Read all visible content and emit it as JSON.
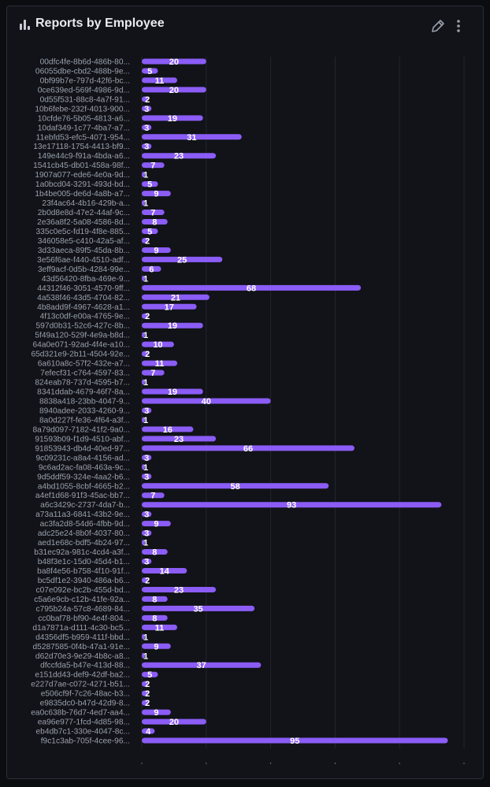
{
  "panel": {
    "title": "Reports by Employee",
    "title_icon": "bar-chart-icon",
    "edit_icon": "pencil-icon",
    "menu_icon": "more-vertical-icon"
  },
  "colors": {
    "bar": "#8b5cf6",
    "background": "#111318",
    "label": "#9aa0ab",
    "value_label": "#ffffff",
    "grid": "#22262e"
  },
  "chart_data": {
    "type": "bar",
    "orientation": "horizontal",
    "title": "Reports by Employee",
    "xlabel": "",
    "ylabel": "",
    "xlim": [
      0,
      100
    ],
    "grid": true,
    "categories": [
      "00dfc4fe-8b6d-486b-80...",
      "06055dbe-cbd2-488b-9e...",
      "0bf99b7e-797d-42f6-bc...",
      "0ce639ed-569f-4986-9d...",
      "0d55f531-88c8-4a7f-91...",
      "10b6febe-232f-4013-900...",
      "10cfde76-5b05-4813-a6...",
      "10daf349-1c77-4ba7-a7...",
      "11ebfd53-efc5-4071-954...",
      "13e17118-1754-4413-bf9...",
      "149e44c9-f91a-4bda-a6...",
      "1541cb45-db01-458a-98f...",
      "1907a077-ede6-4e0a-9d...",
      "1a0bcd04-3291-493d-bd...",
      "1b4be005-de6d-4a8b-a7...",
      "23f4ac64-4b16-429b-a...",
      "2b0d8e8d-47e2-44af-9c...",
      "2e36a8f2-5a08-4586-8d...",
      "335c0e5c-fd19-4f8e-885...",
      "346058e5-c410-42a5-af...",
      "3d33aeca-89f5-45da-8b...",
      "3e56f6ae-f440-4510-adf...",
      "3eff9acf-0d5b-4284-99e...",
      "43d56420-8fba-469e-9...",
      "44312f46-3051-4570-9ff...",
      "4a538f46-43d5-4704-82...",
      "4b8add9f-4967-4628-a1...",
      "4f13c0df-e00a-4765-9e...",
      "597d0b31-52c6-427c-8b...",
      "5f49a120-529f-4e9a-b8d...",
      "64a0e071-92ad-4f4e-a10...",
      "65d321e9-2b11-4504-92e...",
      "6a610a8c-57f2-432e-a7...",
      "7efecf31-c764-4597-83...",
      "824eab78-737d-4595-b7...",
      "8341ddab-4679-46f7-8a...",
      "8838a418-23bb-4047-9...",
      "8940adee-2033-4260-9...",
      "8a0d227f-fe36-4f64-a3f...",
      "8a79d097-7182-41f2-9a0...",
      "91593b09-f1d9-4510-abf...",
      "91853943-db4d-40ed-97...",
      "9c09231c-a8a4-4156-ad...",
      "9c6ad2ac-fa08-463a-9c...",
      "9d5ddf59-324e-4aa2-b6...",
      "a4bd1055-8cbf-4665-b2...",
      "a4ef1d68-91f3-45ac-bb7...",
      "a6c3429c-2737-4da7-b...",
      "a73a11a3-6841-43b2-9e...",
      "ac3fa2d8-54d6-4fbb-9d...",
      "adc25e24-8b0f-4037-80...",
      "aed1e68c-bdf5-4b24-97...",
      "b31ec92a-981c-4cd4-a3f...",
      "b48f3e1c-15d0-45d4-b1...",
      "ba8f4e56-b758-4f10-91f...",
      "bc5df1e2-3940-486a-b6...",
      "c07e092e-bc2b-455d-bd...",
      "c5a6e9cb-c12b-41fe-92a...",
      "c795b24a-57c8-4689-84...",
      "cc0baf78-bf90-4e4f-804...",
      "d1a7871a-d111-4c30-bc5...",
      "d4356df5-b959-411f-bbd...",
      "d5287585-0f4b-47a1-91e...",
      "d62d70e3-9e29-4b8c-a8...",
      "dfccfda5-b47e-413d-88...",
      "e151dd43-def9-42df-ba2...",
      "e227d7ae-c072-4271-b51...",
      "e506cf9f-7c26-48ac-b3...",
      "e9835dc0-b47d-42d9-8...",
      "ea0c638b-76d7-4ed7-aa4...",
      "ea96e977-1fcd-4d85-98...",
      "eb4db7c1-330e-4047-8c...",
      "f9c1c3ab-705f-4cee-96..."
    ],
    "values": [
      20,
      5,
      11,
      20,
      2,
      3,
      19,
      3,
      31,
      3,
      23,
      7,
      1,
      5,
      9,
      1,
      7,
      8,
      5,
      2,
      9,
      25,
      6,
      1,
      68,
      21,
      17,
      2,
      19,
      1,
      10,
      2,
      11,
      7,
      1,
      19,
      40,
      3,
      1,
      16,
      23,
      66,
      3,
      1,
      3,
      58,
      7,
      93,
      3,
      9,
      3,
      1,
      8,
      3,
      14,
      2,
      23,
      8,
      35,
      8,
      11,
      1,
      9,
      1,
      37,
      5,
      2,
      2,
      2,
      9,
      20,
      4,
      95
    ]
  }
}
